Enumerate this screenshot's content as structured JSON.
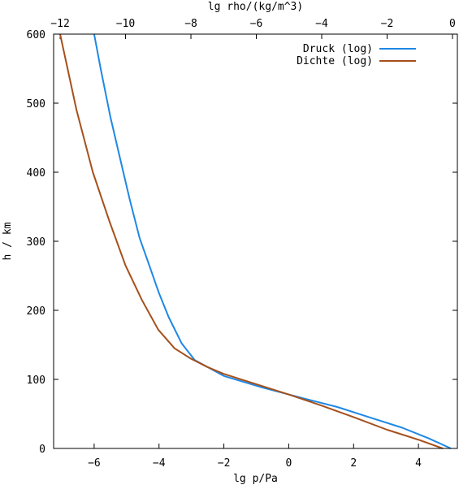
{
  "chart_data": {
    "type": "line",
    "xlabel": "lg p/Pa",
    "x2label": "lg rho/(kg/m^3)",
    "ylabel": "h / km",
    "xlim": [
      -7.25,
      5.2
    ],
    "x2lim": [
      -12.2,
      0.15
    ],
    "ylim": [
      0,
      600
    ],
    "xticks": [
      -6,
      -4,
      -2,
      0,
      2,
      4
    ],
    "x2ticks": [
      -12,
      -10,
      -8,
      -6,
      -4,
      -2,
      0
    ],
    "yticks": [
      0,
      100,
      200,
      300,
      400,
      500,
      600
    ],
    "grid": false,
    "legend_position": "top-right",
    "series": [
      {
        "name": "Druck (log)",
        "axis": "bottom",
        "color": "#1e88e5",
        "x": [
          5.0,
          4.3,
          3.5,
          2.5,
          1.5,
          0.5,
          -0.8,
          -2.0,
          -2.9,
          -3.3,
          -3.7,
          -4.0,
          -4.3,
          -4.6,
          -4.9,
          -5.2,
          -5.5,
          -5.8,
          -6.0
        ],
        "y": [
          0,
          15,
          30,
          45,
          60,
          72,
          88,
          105,
          128,
          152,
          190,
          225,
          265,
          305,
          360,
          420,
          480,
          550,
          600
        ]
      },
      {
        "name": "Dichte (log)",
        "axis": "top",
        "color": "#a5501b",
        "x": [
          -0.3,
          -1.0,
          -2.0,
          -3.0,
          -4.0,
          -5.0,
          -6.0,
          -7.0,
          -7.5,
          -8.0,
          -8.5,
          -9.0,
          -9.5,
          -10.0,
          -10.5,
          -11.0,
          -11.5,
          -12.0
        ],
        "y": [
          0,
          12,
          27,
          45,
          62,
          78,
          93,
          108,
          118,
          130,
          145,
          172,
          215,
          265,
          330,
          400,
          490,
          600
        ]
      }
    ]
  }
}
